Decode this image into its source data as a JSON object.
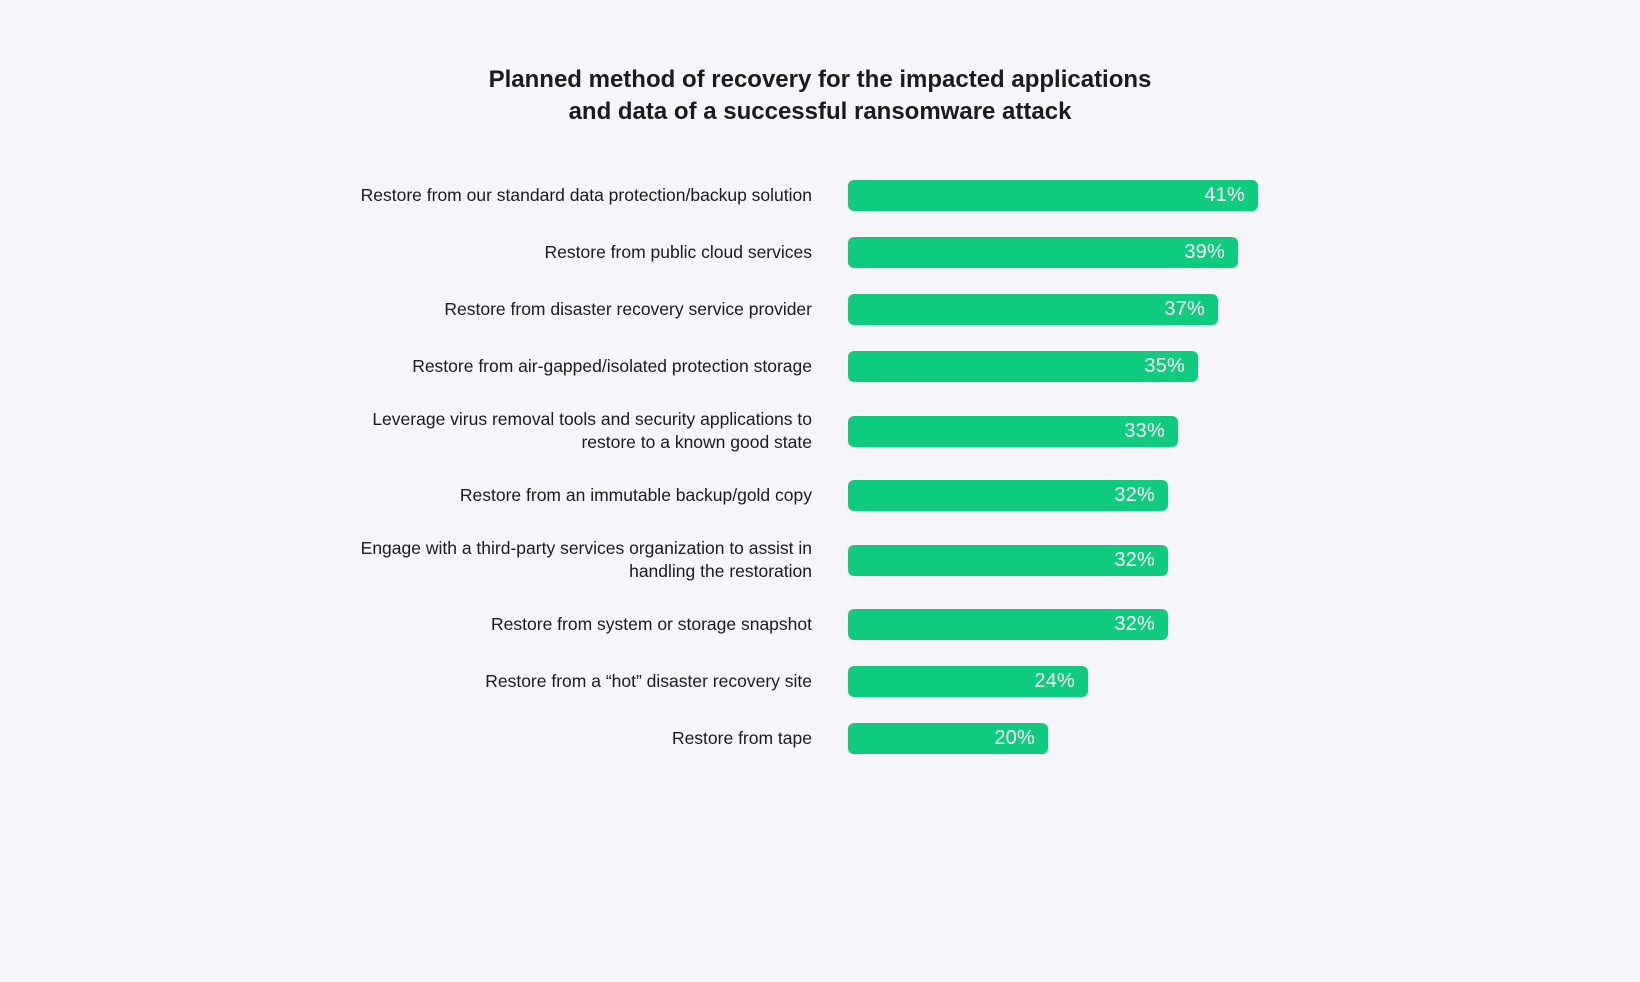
{
  "chart_data": {
    "type": "bar",
    "orientation": "horizontal",
    "title": "Planned method of recovery for the impacted applications\nand data of a successful ransomware attack",
    "categories": [
      "Restore from our standard data protection/backup solution",
      "Restore from public cloud services",
      "Restore from disaster recovery service provider",
      "Restore from air-gapped/isolated protection storage",
      "Leverage virus removal tools and security applications to restore to a known good state",
      "Restore from an immutable backup/gold copy",
      "Engage with a third-party services organization to assist in handling the restoration",
      "Restore from system or storage snapshot",
      "Restore from a “hot” disaster recovery site",
      "Restore from tape"
    ],
    "values": [
      41,
      39,
      37,
      35,
      33,
      32,
      32,
      32,
      24,
      20
    ],
    "value_suffix": "%",
    "xlim": [
      0,
      46
    ],
    "bar_color": "#0ecb7e",
    "background_color": "#f5f5fa",
    "grid": false,
    "legend": false,
    "value_labels_position": "inside-end"
  }
}
